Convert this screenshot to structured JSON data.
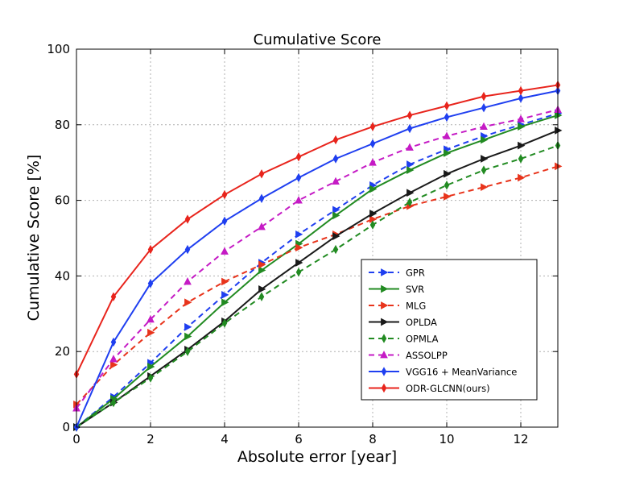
{
  "chart_data": {
    "type": "line",
    "title": "Cumulative Score",
    "xlabel": "Absolute error [year]",
    "ylabel": "Cumulative Score [%]",
    "xlim": [
      0,
      13
    ],
    "ylim": [
      0,
      100
    ],
    "xticks": [
      0,
      2,
      4,
      6,
      8,
      10,
      12
    ],
    "yticks": [
      0,
      20,
      40,
      60,
      80,
      100
    ],
    "grid": true,
    "legend_position": "lower-right",
    "x": [
      0,
      1,
      2,
      3,
      4,
      5,
      6,
      7,
      8,
      9,
      10,
      11,
      12,
      13
    ],
    "series": [
      {
        "name": "GPR",
        "color": "#1f3ff0",
        "dash": true,
        "marker": "triangle-right",
        "values": [
          0,
          8,
          17,
          26.5,
          35,
          43.5,
          51,
          57.5,
          64,
          69.5,
          73.5,
          77,
          80,
          83
        ]
      },
      {
        "name": "SVR",
        "color": "#228b22",
        "dash": false,
        "marker": "triangle-right",
        "values": [
          0,
          7.5,
          16,
          24,
          33,
          41.5,
          48.5,
          56,
          63,
          68,
          72.5,
          76,
          79.5,
          82.5
        ]
      },
      {
        "name": "MLG",
        "color": "#e8341c",
        "dash": true,
        "marker": "triangle-right",
        "values": [
          6,
          16.5,
          25,
          33,
          38.5,
          43,
          47.5,
          51,
          55,
          58.5,
          61,
          63.5,
          66,
          69
        ]
      },
      {
        "name": "OPLDA",
        "color": "#1a1a1a",
        "dash": false,
        "marker": "triangle-right",
        "values": [
          0,
          6.5,
          13.5,
          20.5,
          28,
          36.5,
          43.5,
          50.5,
          56.5,
          62,
          67,
          71,
          74.5,
          78.5
        ]
      },
      {
        "name": "OPMLA",
        "color": "#228b22",
        "dash": true,
        "marker": "diamond",
        "values": [
          0,
          6.5,
          13,
          20,
          27.5,
          34.5,
          41,
          47,
          53.5,
          59.5,
          64,
          68,
          71,
          74.5
        ]
      },
      {
        "name": "ASSOLPP",
        "color": "#c51bc5",
        "dash": true,
        "marker": "triangle-up",
        "values": [
          5,
          18,
          28.5,
          38.5,
          46.5,
          53,
          60,
          65,
          70,
          74,
          77,
          79.5,
          81.5,
          84
        ]
      },
      {
        "name": "VGG16 + MeanVariance",
        "color": "#1f3ff0",
        "dash": false,
        "marker": "diamond",
        "values": [
          0,
          22.5,
          38,
          47,
          54.5,
          60.5,
          66,
          71,
          75,
          79,
          82,
          84.5,
          87,
          89
        ]
      },
      {
        "name": "ODR-GLCNN(ours)",
        "color": "#e8241c",
        "dash": false,
        "marker": "diamond",
        "values": [
          14,
          34.5,
          47,
          55,
          61.5,
          67,
          71.5,
          76,
          79.5,
          82.5,
          85,
          87.5,
          89,
          90.5
        ]
      }
    ]
  }
}
